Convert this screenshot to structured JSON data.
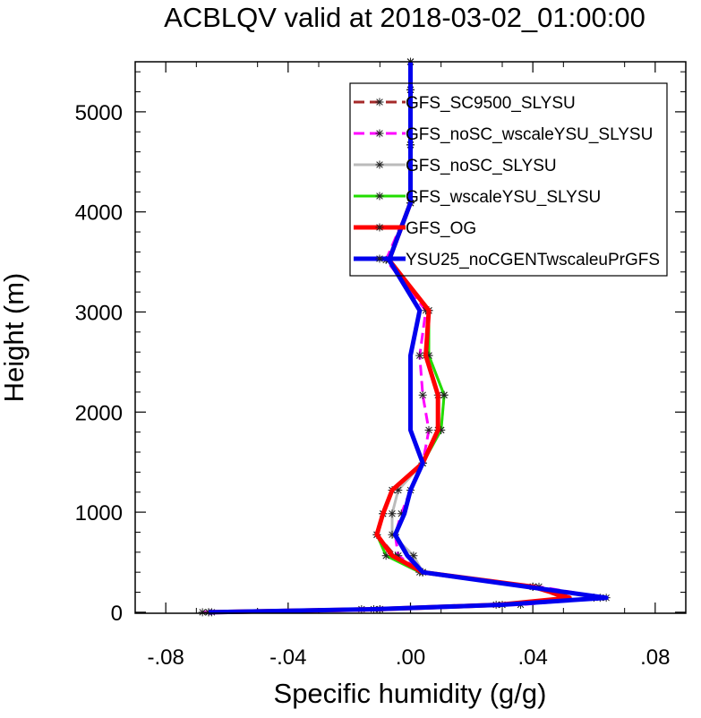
{
  "chart_data": {
    "type": "line",
    "title": "ACBLQV valid at 2018-03-02_01:00:00",
    "xlabel": "Specific humidity (g/g)",
    "ylabel": "Height (m)",
    "xlim": [
      -0.09,
      0.09
    ],
    "ylim": [
      -10,
      5500
    ],
    "xticks": [
      -0.08,
      -0.04,
      0.0,
      0.04,
      0.08
    ],
    "xtick_labels": [
      "-.08",
      "-.04",
      ".00",
      ".04",
      ".08"
    ],
    "yticks": [
      0,
      1000,
      2000,
      3000,
      4000,
      5000
    ],
    "ytick_labels": [
      "0",
      "1000",
      "2000",
      "3000",
      "4000",
      "5000"
    ],
    "legend_position": "top-right",
    "heights": [
      0,
      30,
      75,
      145,
      255,
      400,
      565,
      775,
      985,
      1220,
      1490,
      1820,
      2170,
      2565,
      3015,
      3520,
      4090,
      4670,
      5220,
      5500
    ],
    "series": [
      {
        "name": "GFS_SC9500_SLYSU",
        "color": "#a52a2a",
        "dash": "12,6",
        "width": 3,
        "marker": true,
        "values": [
          -0.065,
          -0.012,
          0.028,
          0.05,
          0.04,
          0.004,
          -0.005,
          -0.011,
          -0.009,
          -0.006,
          0.004,
          0.009,
          0.009,
          0.005,
          0.006,
          -0.007,
          0.0,
          0.0,
          0.0,
          0.0
        ]
      },
      {
        "name": "GFS_noSC_wscaleYSU_SLYSU",
        "color": "#ff00ff",
        "dash": "12,6",
        "width": 3,
        "marker": true,
        "values": [
          -0.068,
          -0.016,
          0.036,
          0.064,
          0.042,
          0.004,
          -0.004,
          -0.005,
          -0.003,
          0.0,
          0.004,
          0.006,
          0.004,
          0.003,
          0.005,
          -0.008,
          0.0,
          0.0,
          0.0,
          0.0
        ]
      },
      {
        "name": "GFS_noSC_SLYSU",
        "color": "#bbbbbb",
        "dash": "none",
        "width": 3,
        "marker": true,
        "values": [
          -0.066,
          -0.01,
          0.03,
          0.06,
          0.04,
          0.004,
          0.001,
          -0.006,
          -0.006,
          -0.004,
          0.004,
          0.01,
          0.011,
          0.006,
          0.006,
          -0.007,
          0.0,
          0.0,
          0.0,
          0.0
        ]
      },
      {
        "name": "GFS_wscaleYSU_SLYSU",
        "color": "#22dd00",
        "dash": "none",
        "width": 3,
        "marker": true,
        "values": [
          -0.066,
          -0.01,
          0.03,
          0.062,
          0.04,
          0.003,
          -0.008,
          -0.011,
          -0.009,
          -0.006,
          0.004,
          0.01,
          0.011,
          0.006,
          0.006,
          -0.007,
          0.0,
          0.0,
          0.0,
          0.0
        ]
      },
      {
        "name": "GFS_OG",
        "color": "#ff0000",
        "dash": "none",
        "width": 5,
        "marker": false,
        "values": [
          -0.066,
          -0.011,
          0.029,
          0.052,
          0.04,
          0.004,
          -0.006,
          -0.011,
          -0.009,
          -0.006,
          0.004,
          0.009,
          0.009,
          0.005,
          0.006,
          -0.007,
          0.0,
          0.0,
          0.0,
          0.0
        ]
      },
      {
        "name": "YSU25_noCGENTwscaleuPrGFS",
        "color": "#0000ee",
        "dash": "none",
        "width": 5,
        "marker": false,
        "values": [
          -0.066,
          -0.012,
          0.03,
          0.064,
          0.038,
          0.004,
          -0.001,
          -0.005,
          -0.002,
          0.0,
          0.004,
          0.0,
          0.0,
          0.0,
          0.003,
          -0.007,
          0.0,
          0.0,
          0.0,
          0.0
        ]
      }
    ]
  }
}
